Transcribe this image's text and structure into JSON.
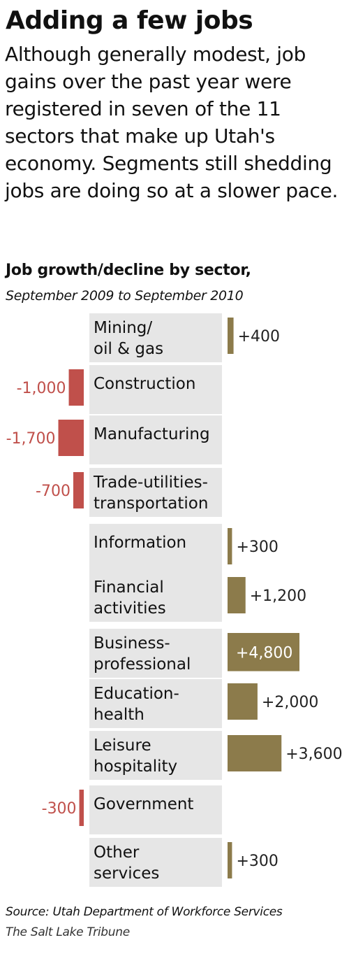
{
  "header": {
    "title": "Adding a few jobs",
    "description": "Although generally modest, job gains over the past year were registered in seven of the 11 sectors that make up Utah's economy. Segments still shedding jobs are doing so at a slower pace."
  },
  "footer": {
    "source": "Source: Utah Department of Workforce Services",
    "credit": "The Salt Lake Tribune"
  },
  "colors": {
    "positive": "#8c7b4b",
    "negative": "#c0504b",
    "sector_band": "#e6e6e6"
  },
  "chart_data": {
    "type": "bar",
    "orientation": "horizontal-diverging",
    "title": "Job growth/decline by sector,",
    "subtitle": "September 2009 to September 2010",
    "categories": [
      [
        "Mining/",
        "oil & gas"
      ],
      [
        "Construction"
      ],
      [
        "Manufacturing"
      ],
      [
        "Trade-utilities-",
        "transportation"
      ],
      [
        "Information"
      ],
      [
        "Financial",
        "activities"
      ],
      [
        "Business-",
        "professional"
      ],
      [
        "Education-",
        "health"
      ],
      [
        "Leisure",
        "hospitality"
      ],
      [
        "Government"
      ],
      [
        "Other",
        "services"
      ]
    ],
    "values": [
      400,
      -1000,
      -1700,
      -700,
      300,
      1200,
      4800,
      2000,
      3600,
      -300,
      300
    ],
    "value_labels": [
      "+400",
      "-1,000",
      "-1,700",
      "-700",
      "+300",
      "+1,200",
      "+4,800",
      "+2,000",
      "+3,600",
      "-300",
      "+300"
    ],
    "xlabel": "",
    "ylabel": "",
    "grid": false,
    "legend": "none"
  }
}
